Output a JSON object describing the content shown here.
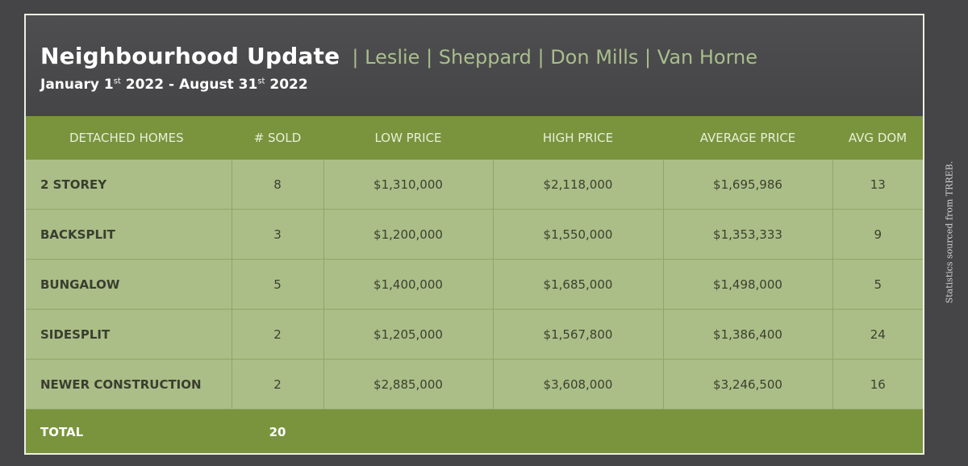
{
  "header": {
    "title": "Neighbourhood Update",
    "subtitle": "| Leslie | Sheppard | Don Mills | Van Horne",
    "date_parts": [
      "January 1",
      "st",
      " 2022 - August 31",
      "st",
      " 2022"
    ]
  },
  "table": {
    "columns": [
      "DETACHED HOMES",
      "# SOLD",
      "LOW PRICE",
      "HIGH PRICE",
      "AVERAGE PRICE",
      "AVG  DOM"
    ],
    "rows": [
      [
        "2 STOREY",
        "8",
        "$1,310,000",
        "$2,118,000",
        "$1,695,986",
        "13"
      ],
      [
        "BACKSPLIT",
        "3",
        "$1,200,000",
        "$1,550,000",
        "$1,353,333",
        "9"
      ],
      [
        "BUNGALOW",
        "5",
        "$1,400,000",
        "$1,685,000",
        "$1,498,000",
        "5"
      ],
      [
        "SIDESPLIT",
        "2",
        "$1,205,000",
        "$1,567,800",
        "$1,386,400",
        "24"
      ],
      [
        "NEWER CONSTRUCTION",
        "2",
        "$2,885,000",
        "$3,608,000",
        "$3,246,500",
        "16"
      ]
    ],
    "total": {
      "label": "TOTAL",
      "sold": "20"
    }
  },
  "source_note": "Statistics sourced from TRREB.",
  "colors": {
    "background": "#454547",
    "header_green": "#79943d",
    "row_green": "#abbe87",
    "subtitle_green": "#a9be8c"
  }
}
